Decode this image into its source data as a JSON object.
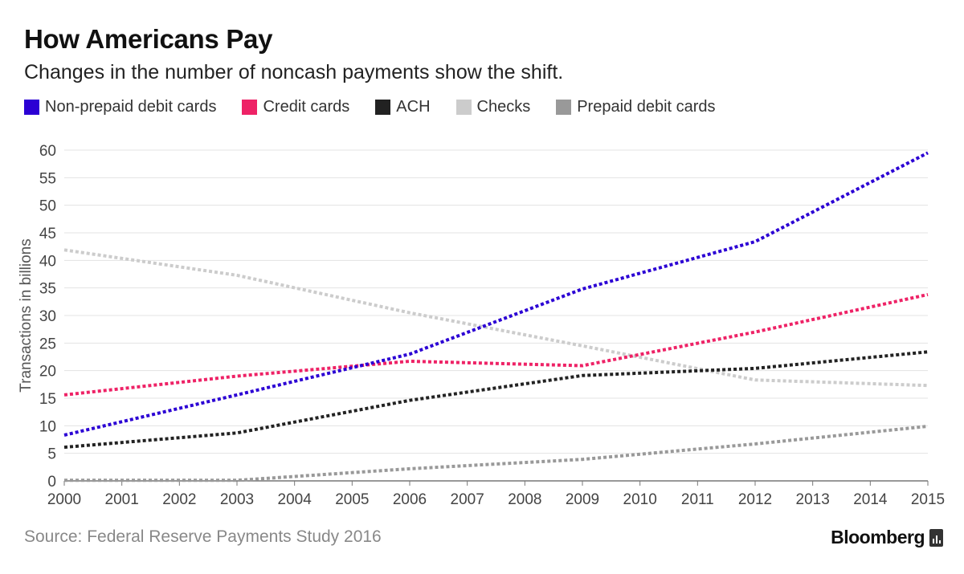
{
  "header": {
    "title": "How Americans Pay",
    "subtitle": "Changes in the number of noncash payments show the shift."
  },
  "footer": {
    "source": "Source: Federal Reserve Payments Study 2016",
    "brand": "Bloomberg",
    "brand_icon": "bar-chart-icon"
  },
  "chart_data": {
    "type": "line",
    "title": "How Americans Pay",
    "subtitle": "Changes in the number of noncash payments show the shift.",
    "xlabel": "",
    "ylabel": "Transactions in billions",
    "x": [
      2000,
      2001,
      2002,
      2003,
      2004,
      2005,
      2006,
      2007,
      2008,
      2009,
      2010,
      2011,
      2012,
      2013,
      2014,
      2015
    ],
    "xlim": [
      2000,
      2015
    ],
    "ylim": [
      0,
      60
    ],
    "yticks": [
      0,
      5,
      10,
      15,
      20,
      25,
      30,
      35,
      40,
      45,
      50,
      55,
      60
    ],
    "grid": true,
    "legend_position": "top-left",
    "line_style": "dotted",
    "series": [
      {
        "name": "Non-prepaid debit cards",
        "color": "#2b00d4",
        "points": [
          [
            2000,
            8.3
          ],
          [
            2003,
            15.6
          ],
          [
            2006,
            23.0
          ],
          [
            2009,
            34.8
          ],
          [
            2012,
            43.4
          ],
          [
            2015,
            59.5
          ]
        ]
      },
      {
        "name": "Credit cards",
        "color": "#ee2266",
        "points": [
          [
            2000,
            15.6
          ],
          [
            2003,
            19.0
          ],
          [
            2006,
            21.7
          ],
          [
            2009,
            20.9
          ],
          [
            2012,
            27.0
          ],
          [
            2015,
            33.8
          ]
        ]
      },
      {
        "name": "ACH",
        "color": "#222222",
        "points": [
          [
            2000,
            6.1
          ],
          [
            2003,
            8.7
          ],
          [
            2006,
            14.6
          ],
          [
            2009,
            19.1
          ],
          [
            2012,
            20.4
          ],
          [
            2015,
            23.4
          ]
        ]
      },
      {
        "name": "Checks",
        "color": "#cccccc",
        "points": [
          [
            2000,
            41.9
          ],
          [
            2003,
            37.3
          ],
          [
            2006,
            30.5
          ],
          [
            2009,
            24.5
          ],
          [
            2012,
            18.3
          ],
          [
            2015,
            17.3
          ]
        ]
      },
      {
        "name": "Prepaid debit cards",
        "color": "#999999",
        "points": [
          [
            2000,
            0.1
          ],
          [
            2003,
            0.1
          ],
          [
            2006,
            2.2
          ],
          [
            2009,
            3.9
          ],
          [
            2012,
            6.7
          ],
          [
            2015,
            9.9
          ]
        ]
      }
    ]
  }
}
